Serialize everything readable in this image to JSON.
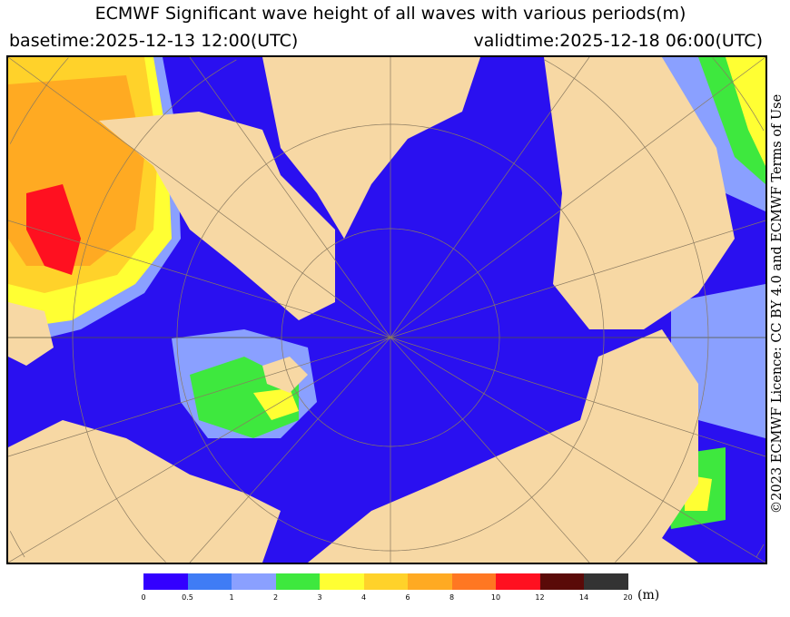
{
  "title": "ECMWF Significant wave height of all waves with various periods(m)",
  "basetime": "basetime:2025-12-13 12:00(UTC)",
  "validtime": "validtime:2025-12-18 06:00(UTC)",
  "license": "©2023 ECMWF Licence: CC BY 4.0 and ECMWF Terms of Use",
  "colors": {
    "land": "#f7d8a4",
    "grid": "#8a7a60"
  },
  "colorbar": {
    "unit": "(m)",
    "ticks": [
      "0",
      "0.5",
      "1",
      "2",
      "3",
      "4",
      "6",
      "8",
      "10",
      "12",
      "14",
      "20"
    ],
    "colors": [
      "#3300ff",
      "#3f7cf5",
      "#8aa0ff",
      "#3ee83e",
      "#ffff33",
      "#ffd22a",
      "#ffaa22",
      "#ff7722",
      "#ff1020",
      "#5a0a08",
      "#333333"
    ]
  }
}
